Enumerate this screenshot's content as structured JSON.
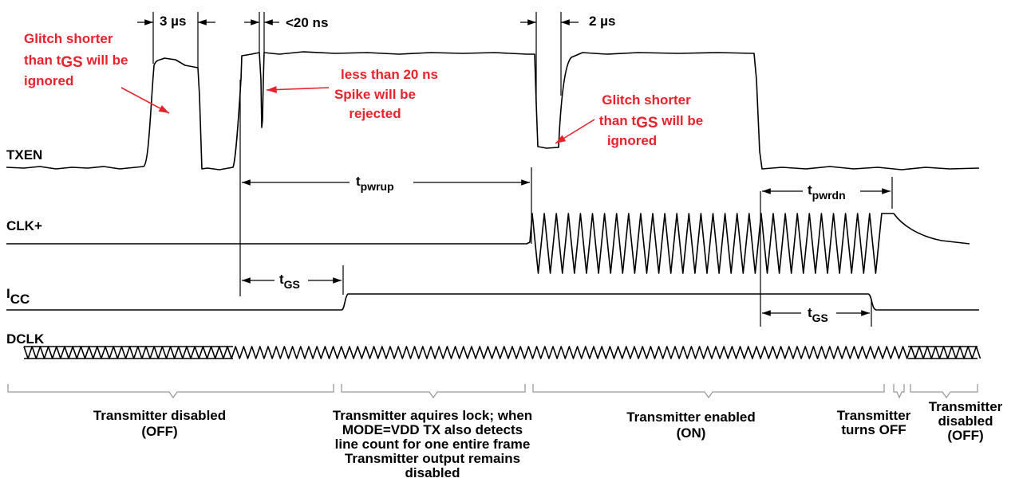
{
  "signals": {
    "txen": "TXEN",
    "clk": "CLK+",
    "icc_main": "I",
    "icc_sub": "CC",
    "dclk": "DCLK"
  },
  "timing": {
    "t3us": "3 µs",
    "t20ns": "<20 ns",
    "t2us": "2 µs",
    "tpwrup_main": "t",
    "tpwrup_sub": "pwrup",
    "tpwrdn_main": "t",
    "tpwrdn_sub": "pwrdn",
    "tgs1_main": "t",
    "tgs1_sub": "GS",
    "tgs2_main": "t",
    "tgs2_sub": "GS"
  },
  "annotations": {
    "glitch1": {
      "line1": "Glitch shorter",
      "line2a": "than t",
      "line2sub": "GS",
      "line2b": " will be",
      "line3": "ignored"
    },
    "spike": {
      "line1": "less than 20 ns",
      "line2": "Spike will be",
      "line3": "rejected"
    },
    "glitch2": {
      "line1": "Glitch shorter",
      "line2a": "than t",
      "line2sub": "GS",
      "line2b": " will be",
      "line3": "ignored"
    }
  },
  "phases": {
    "p1": {
      "line1": "Transmitter disabled",
      "line2": "(OFF)"
    },
    "p2": {
      "line1": "Transmitter aquires lock; when",
      "line2": "MODE=VDD TX also detects",
      "line3": "line count for one entire frame",
      "line4": "Transmitter output remains",
      "line5": "disabled"
    },
    "p3": {
      "line1": "Transmitter enabled",
      "line2": "(ON)"
    },
    "p4": {
      "line1": "Transmitter",
      "line2": "turns OFF"
    },
    "p5": {
      "line1": "Transmitter",
      "line2": "disabled",
      "line3": "(OFF)"
    }
  },
  "colors": {
    "annotation": "#e8222b",
    "signal": "#000000",
    "brace": "#9a9a9a"
  }
}
